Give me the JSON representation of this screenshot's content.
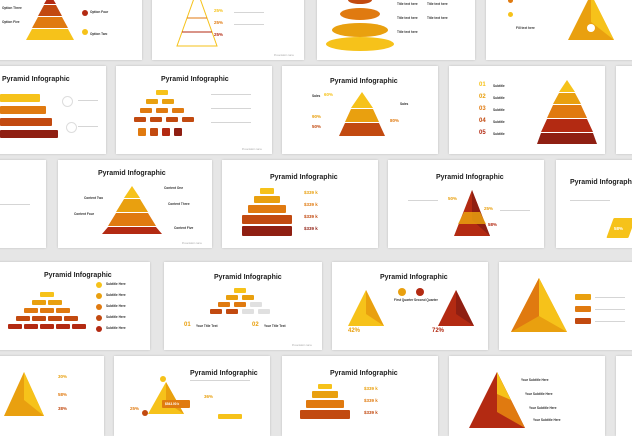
{
  "colors": {
    "yellow": "#f6c21a",
    "gold": "#e9a00f",
    "orange": "#e07a10",
    "rust": "#c24a10",
    "red": "#b32a12",
    "darkred": "#8f1f12"
  },
  "text": {
    "pyramid_infographic": "Pyramid Infographic",
    "option_three": "Option Three",
    "option_four": "Option Four",
    "option_five": "Option Five",
    "option_two": "Option Two",
    "fill_text_here": "Fill text here",
    "title_text_here": "Title text here",
    "content_one": "Content One",
    "content_two": "Content Two",
    "content_three": "Content Three",
    "content_four": "Content Four",
    "content_five": "Content Five",
    "subtitle_here": "Subtitle Here",
    "your_subtitle_here": "Your Subtitle Here",
    "your_title_text": "Your Title Text",
    "first_quarter": "First Quarter",
    "second_quarter": "Second Quarter",
    "sales": "Sales",
    "sales_line": "Sales",
    "subtitle": "Subtitle",
    "subtitle_text": "Subtitle Text",
    "num_01": "01",
    "num_02": "02",
    "num_03": "03",
    "num_04": "04",
    "num_05": "05",
    "n_01": "01",
    "n_02": "02",
    "p25": "25%",
    "p60": "60%",
    "p50": "50%",
    "p80": "80%",
    "p90": "90%",
    "p60b": "60%",
    "p42": "42%",
    "p72": "72%",
    "p38": "38%",
    "p58": "58%",
    "p30": "30%",
    "p50b": "50%",
    "p25b": "25%",
    "p58b": "58%",
    "p36": "36%",
    "money": "$339 k",
    "money_total": "$543.00 k",
    "presentation_name": "Presentation name"
  }
}
